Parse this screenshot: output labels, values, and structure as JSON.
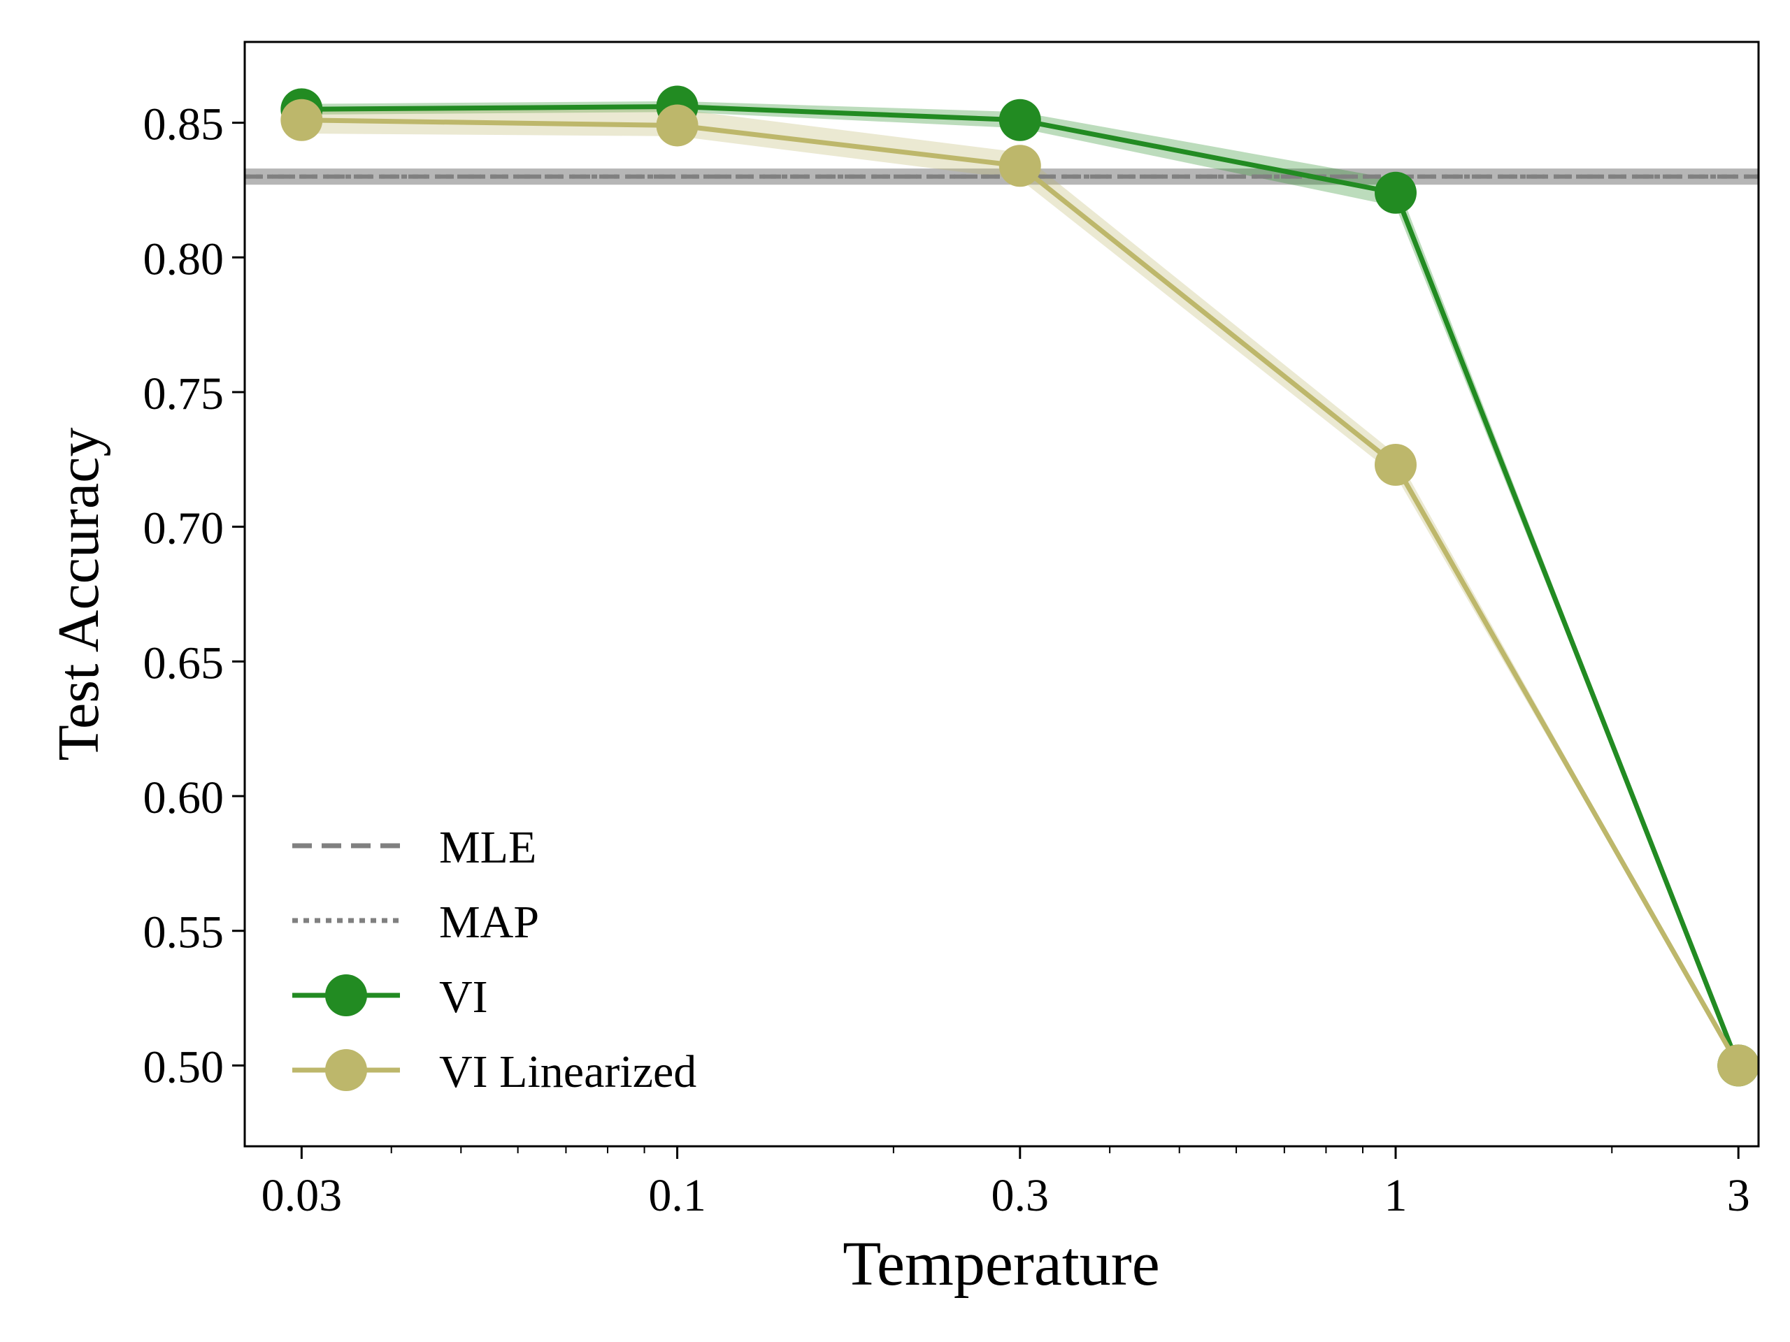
{
  "chart_data": {
    "type": "line",
    "xlabel": "Temperature",
    "ylabel": "Test Accuracy",
    "x_scale": "log",
    "xlim": [
      0.025,
      3.2
    ],
    "ylim": [
      0.47,
      0.88
    ],
    "x_ticks": [
      0.03,
      0.1,
      0.3,
      1,
      3
    ],
    "x_tick_labels": [
      "0.03",
      "0.1",
      "0.3",
      "1",
      "3"
    ],
    "y_ticks": [
      0.5,
      0.55,
      0.6,
      0.65,
      0.7,
      0.75,
      0.8,
      0.85
    ],
    "y_tick_labels": [
      "0.50",
      "0.55",
      "0.60",
      "0.65",
      "0.70",
      "0.75",
      "0.80",
      "0.85"
    ],
    "grid": false,
    "legend_position": "lower-left",
    "reference_lines": [
      {
        "name": "MLE",
        "y": 0.83,
        "style": "dashed",
        "color": "#808080",
        "band": [
          0.827,
          0.833
        ]
      },
      {
        "name": "MAP",
        "y": 0.83,
        "style": "dotted",
        "color": "#808080",
        "band": [
          0.827,
          0.833
        ]
      }
    ],
    "series": [
      {
        "name": "VI",
        "color": "#228B22",
        "x": [
          0.03,
          0.1,
          0.3,
          1,
          3
        ],
        "values": [
          0.855,
          0.856,
          0.851,
          0.824,
          0.5
        ],
        "lower": [
          0.853,
          0.854,
          0.848,
          0.819,
          0.5
        ],
        "upper": [
          0.857,
          0.858,
          0.854,
          0.829,
          0.5
        ]
      },
      {
        "name": "VI Linearized",
        "color": "#BDB76B",
        "x": [
          0.03,
          0.1,
          0.3,
          1,
          3
        ],
        "values": [
          0.851,
          0.849,
          0.834,
          0.723,
          0.5
        ],
        "lower": [
          0.846,
          0.845,
          0.829,
          0.719,
          0.5
        ],
        "upper": [
          0.856,
          0.855,
          0.839,
          0.727,
          0.5
        ]
      }
    ]
  }
}
